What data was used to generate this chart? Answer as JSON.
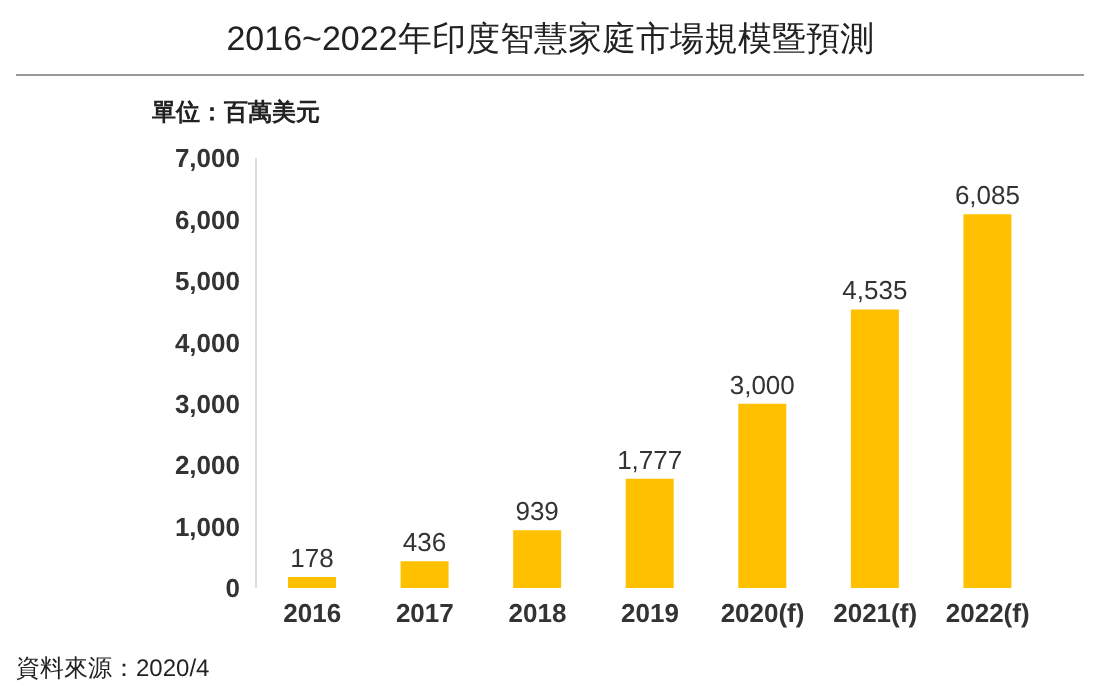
{
  "chart_data": {
    "type": "bar",
    "title": "2016~2022年印度智慧家庭市場規模暨預測",
    "ylabel": "單位：百萬美元",
    "categories": [
      "2016",
      "2017",
      "2018",
      "2019",
      "2020(f)",
      "2021(f)",
      "2022(f)"
    ],
    "values": [
      178,
      436,
      939,
      1777,
      3000,
      4535,
      6085
    ],
    "color": "#ffc000",
    "value_labels": [
      "178",
      "436",
      "939",
      "1,777",
      "3,000",
      "4,535",
      "6,085"
    ],
    "ylim": [
      0,
      7000
    ],
    "yticks": [
      0,
      {
        "value": 1000,
        "label": "1,000"
      },
      {
        "value": 2000,
        "label": "2,000"
      },
      {
        "value": 3000,
        "label": "3,000"
      },
      {
        "value": 4000,
        "label": "4,000"
      },
      {
        "value": 5000,
        "label": "5,000"
      },
      {
        "value": 6000,
        "label": "6,000"
      },
      {
        "value": 7000,
        "label": "7,000"
      }
    ],
    "grid": false,
    "annotations": [
      "資料來源：2020/4"
    ]
  }
}
